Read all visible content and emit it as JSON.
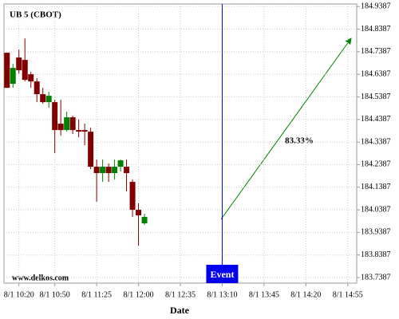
{
  "chart_data": {
    "type": "candlestick",
    "title": "UB 5 (CBOT)",
    "xlabel": "Date",
    "watermark": "www.delkos.com",
    "categories": [
      null,
      null,
      "8/1 10:20",
      null,
      null,
      null,
      null,
      null,
      "8/1 10:50",
      null,
      null,
      null,
      null,
      null,
      null,
      "8/1 11:25",
      null,
      null,
      null,
      null,
      null,
      null,
      "8/1 12:00",
      null,
      null,
      null,
      null,
      null,
      null,
      "8/1 12:35",
      null,
      null,
      null,
      null,
      null,
      null,
      "8/1 13:10",
      null,
      null,
      null,
      null,
      null,
      null,
      "8/1 13:45",
      null,
      null,
      null,
      null,
      null,
      null,
      "8/1 14:20",
      null,
      null,
      null,
      null,
      null,
      null,
      "8/1 14:55",
      null
    ],
    "open": [
      184.7341,
      184.5964,
      184.7129,
      184.7023,
      184.6388,
      184.607,
      184.5506,
      184.5153,
      184.5153,
      184.42,
      184.3917,
      184.4482,
      184.3917,
      184.3917,
      184.3847,
      184.2293,
      184.2011,
      184.2293,
      184.2011,
      184.2293,
      184.2293,
      184.1623,
      184.0387,
      183.9787,
      null,
      null,
      null,
      null,
      null,
      null,
      null,
      null,
      null,
      null,
      null,
      null,
      null,
      null,
      null,
      null,
      null,
      null,
      null,
      null,
      null,
      null,
      null,
      null,
      null,
      null,
      null,
      null,
      null,
      null,
      null,
      null,
      null,
      null,
      null
    ],
    "high": [
      184.7341,
      184.6847,
      184.7482,
      184.7976,
      184.6494,
      184.6212,
      184.5788,
      184.5611,
      184.5259,
      184.5259,
      184.4729,
      184.4553,
      184.4376,
      184.42,
      184.4023,
      184.2611,
      184.2611,
      184.2435,
      184.2611,
      184.2611,
      184.2611,
      184.1729,
      184.067,
      184.0211,
      null,
      null,
      null,
      null,
      null,
      null,
      null,
      null,
      null,
      null,
      null,
      null,
      null,
      null,
      null,
      null,
      null,
      null,
      null,
      null,
      null,
      null,
      null,
      null,
      null,
      null,
      null,
      null,
      null,
      null,
      null,
      null,
      null,
      null,
      null
    ],
    "low": [
      184.5788,
      184.5788,
      184.6423,
      184.607,
      184.5788,
      184.5153,
      184.5082,
      184.4906,
      184.2894,
      184.367,
      184.3847,
      184.3741,
      184.3599,
      184.3247,
      184.2188,
      184.074,
      184.1623,
      184.1623,
      184.1729,
      184.2082,
      184.1199,
      184.007,
      183.8799,
      183.9717,
      null,
      null,
      null,
      null,
      null,
      null,
      null,
      null,
      null,
      null,
      null,
      null,
      null,
      null,
      null,
      null,
      null,
      null,
      null,
      null,
      null,
      null,
      null,
      null,
      null,
      null,
      null,
      null,
      null,
      null,
      null,
      null,
      null,
      null,
      null
    ],
    "close": [
      184.5788,
      184.667,
      184.6564,
      184.6141,
      184.607,
      184.5506,
      184.5153,
      184.5435,
      184.3917,
      184.3917,
      184.4482,
      184.3917,
      184.3847,
      184.3847,
      184.2293,
      184.2011,
      184.2293,
      184.2011,
      184.2293,
      184.2576,
      184.2011,
      184.0387,
      184.014,
      184.007,
      null,
      null,
      null,
      null,
      null,
      null,
      null,
      null,
      null,
      null,
      null,
      null,
      null,
      null,
      null,
      null,
      null,
      null,
      null,
      null,
      null,
      null,
      null,
      null,
      null,
      null,
      null,
      null,
      null,
      null,
      null,
      null,
      null,
      null,
      null
    ],
    "up_color": "#008000",
    "down_color": "#800000",
    "ylim": [
      183.714,
      184.95
    ],
    "yticks": [
      183.7387,
      183.8387,
      183.9387,
      184.0387,
      184.1387,
      184.2387,
      184.3387,
      184.4387,
      184.5387,
      184.6387,
      184.7387,
      184.8387,
      184.9387
    ],
    "grid": true,
    "event": {
      "label": "Event",
      "category": "8/1 13:10",
      "color": "#0000ee"
    },
    "annotation": {
      "text": "83.33%",
      "color": "#008000"
    }
  }
}
